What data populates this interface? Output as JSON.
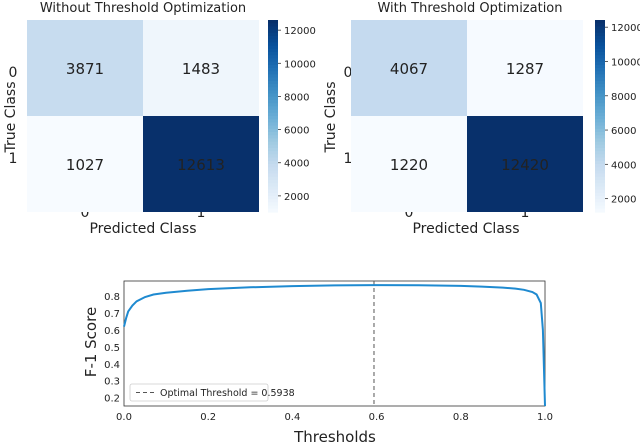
{
  "chart_data": [
    {
      "type": "heatmap",
      "title": "Without Threshold Optimization",
      "xlabel": "Predicted Class",
      "ylabel": "True Class",
      "x_categories": [
        "0",
        "1"
      ],
      "y_categories": [
        "0",
        "1"
      ],
      "values": [
        [
          3871,
          1483
        ],
        [
          1027,
          12613
        ]
      ],
      "colorbar_ticks": [
        "2000",
        "4000",
        "6000",
        "8000",
        "10000",
        "12000"
      ],
      "colorbar_range": [
        1027,
        12613
      ],
      "colormap": "Blues"
    },
    {
      "type": "heatmap",
      "title": "With Threshold Optimization",
      "xlabel": "Predicted Class",
      "ylabel": "True Class",
      "x_categories": [
        "0",
        "1"
      ],
      "y_categories": [
        "0",
        "1"
      ],
      "values": [
        [
          4067,
          1287
        ],
        [
          1220,
          12420
        ]
      ],
      "colorbar_ticks": [
        "2000",
        "4000",
        "6000",
        "8000",
        "10000",
        "12000"
      ],
      "colorbar_range": [
        1220,
        12420
      ],
      "colormap": "Blues"
    },
    {
      "type": "line",
      "xlabel": "Thresholds",
      "ylabel": "F-1 Score",
      "xlim": [
        0.0,
        1.0
      ],
      "ylim": [
        0.15,
        0.89
      ],
      "x_ticks": [
        "0.0",
        "0.2",
        "0.4",
        "0.6",
        "0.8",
        "1.0"
      ],
      "y_ticks": [
        "0.2",
        "0.3",
        "0.4",
        "0.5",
        "0.6",
        "0.7",
        "0.8"
      ],
      "grid": true,
      "legend_position": "bottom-left",
      "series": [
        {
          "x": [
            0.0,
            0.005,
            0.01,
            0.02,
            0.03,
            0.05,
            0.07,
            0.1,
            0.15,
            0.2,
            0.3,
            0.4,
            0.5,
            0.5938,
            0.7,
            0.8,
            0.85,
            0.9,
            0.93,
            0.95,
            0.97,
            0.98,
            0.99,
            0.995,
            1.0
          ],
          "y": [
            0.62,
            0.67,
            0.71,
            0.745,
            0.77,
            0.795,
            0.81,
            0.82,
            0.832,
            0.842,
            0.853,
            0.86,
            0.864,
            0.866,
            0.865,
            0.861,
            0.857,
            0.851,
            0.845,
            0.838,
            0.825,
            0.81,
            0.76,
            0.6,
            0.1
          ],
          "color": "#1f8ad0"
        }
      ],
      "vline": {
        "x": 0.5938,
        "label": "Optimal Threshold = 0.5938",
        "color": "#555555"
      }
    }
  ]
}
